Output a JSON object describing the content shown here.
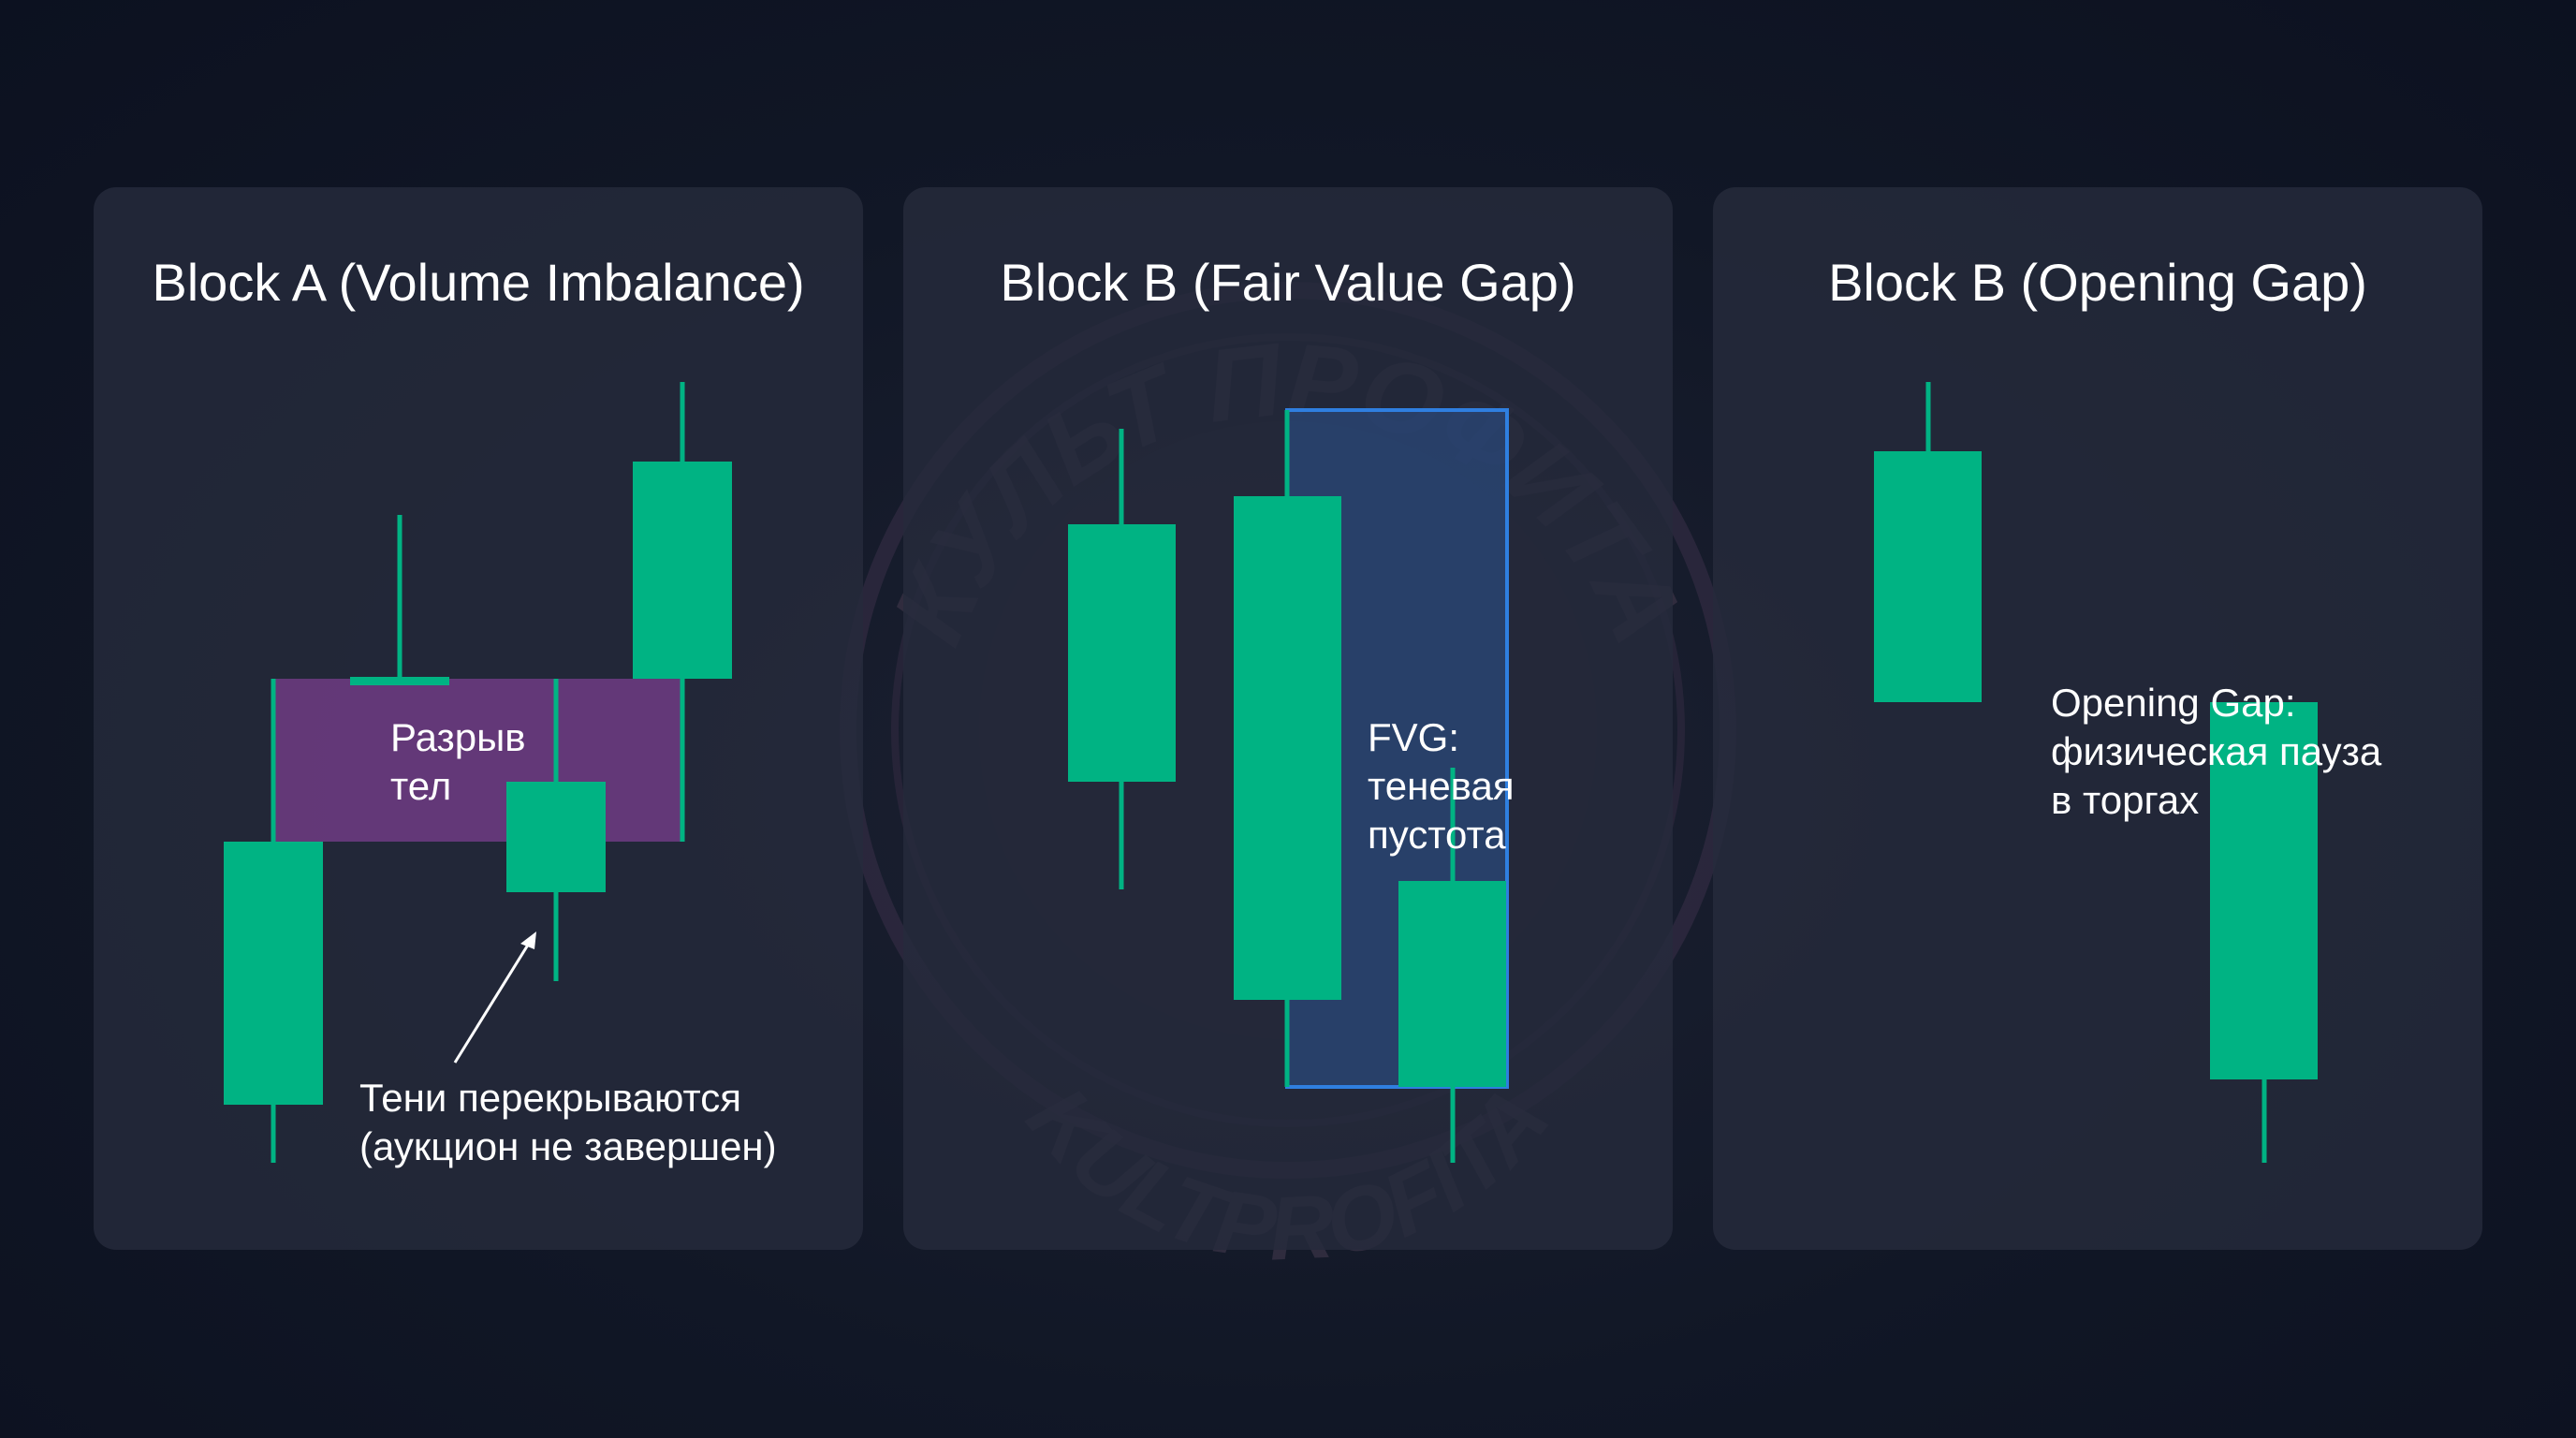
{
  "watermark": {
    "top_text": "КУЛЬТ ПРОФИТА",
    "bottom_text": "KULTPROFITA"
  },
  "colors": {
    "candle": "#00b383",
    "gap_fill": "#7a3f8e",
    "fvg_fill": "#2b4a7e",
    "fvg_border": "#2f7fe0",
    "text": "#ffffff"
  },
  "panels": [
    {
      "title": "Block A (Volume Imbalance)",
      "labels": {
        "gap": "Разрыв\nтел",
        "wicks": "Тени перекрываются\n(аукцион не завершен)"
      }
    },
    {
      "title": "Block B (Fair Value Gap)",
      "labels": {
        "fvg": "FVG:\nтеневая\nпустота"
      }
    },
    {
      "title": "Block B (Opening Gap)",
      "labels": {
        "gap": "Opening Gap:\nфизическая пауза\nв торгах"
      }
    }
  ]
}
